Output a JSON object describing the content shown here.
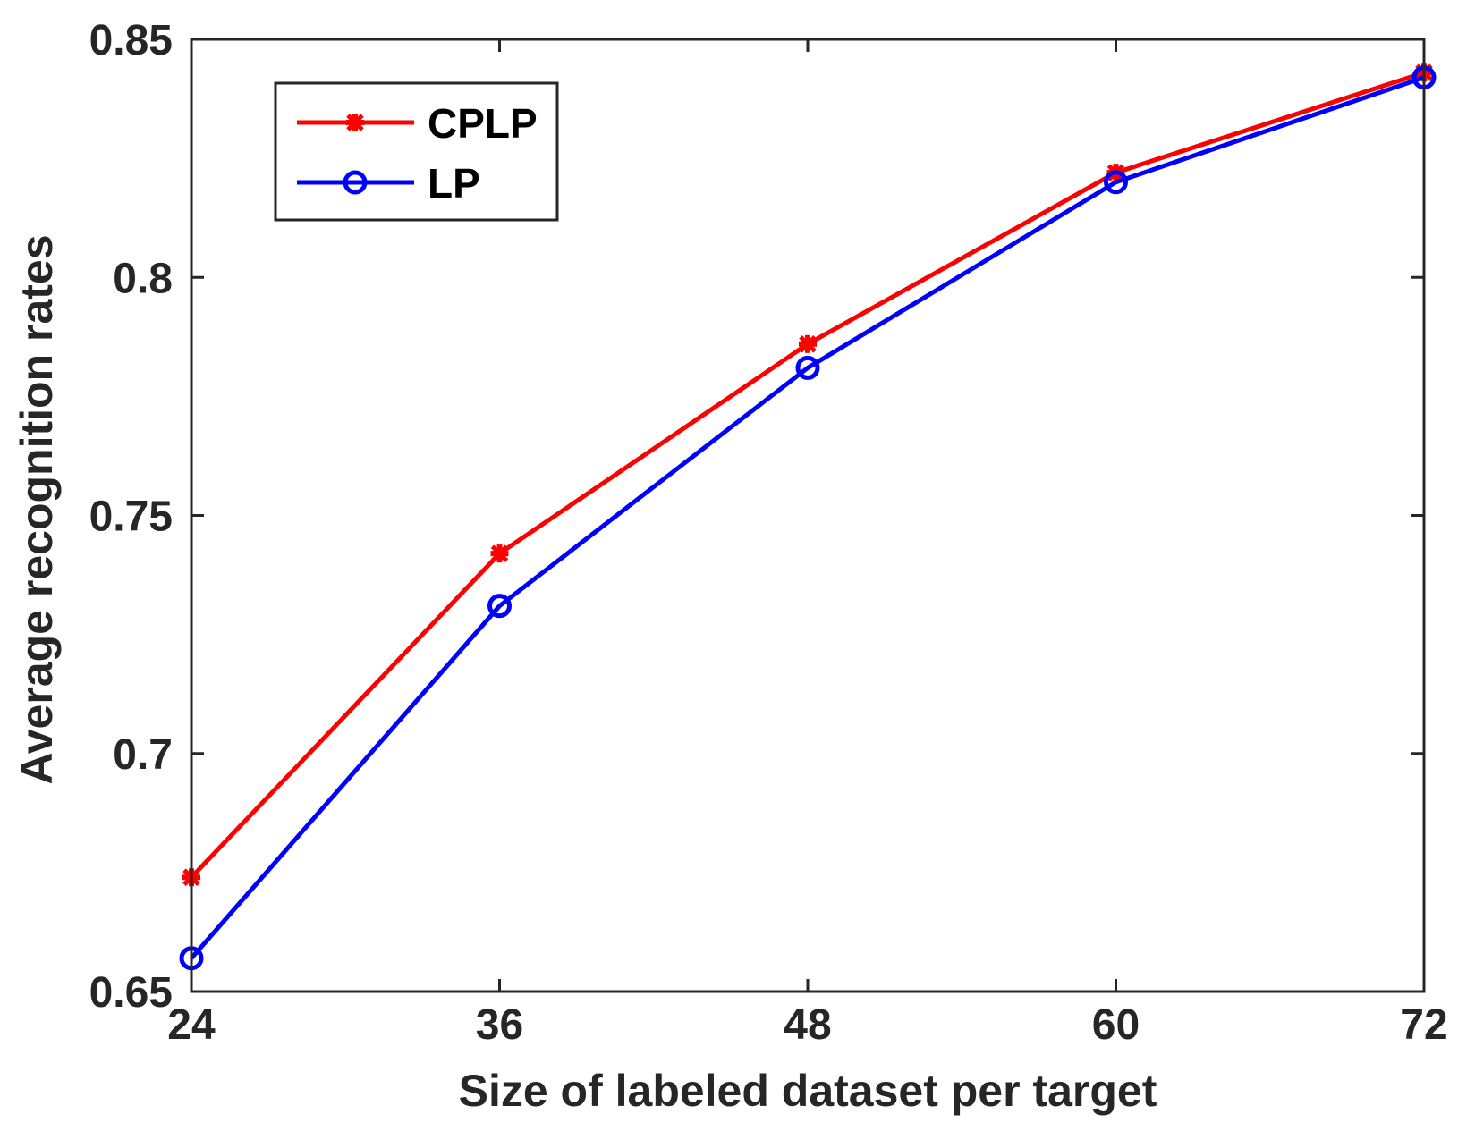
{
  "chart_data": {
    "type": "line",
    "title": "",
    "xlabel": "Size of labeled dataset per target",
    "ylabel": "Average recognition rates",
    "x": [
      24,
      36,
      48,
      60,
      72
    ],
    "xlim": [
      24,
      72
    ],
    "ylim": [
      0.65,
      0.85
    ],
    "xticks": [
      "24",
      "36",
      "48",
      "60",
      "72"
    ],
    "yticks": [
      "0.65",
      "0.7",
      "0.75",
      "0.8",
      "0.85"
    ],
    "grid": false,
    "legend_location": "top-left",
    "series": [
      {
        "name": "CPLP",
        "color": "#ff0000",
        "marker": "asterisk",
        "values": [
          0.674,
          0.742,
          0.786,
          0.822,
          0.843
        ]
      },
      {
        "name": "LP",
        "color": "#0000ff",
        "marker": "circle",
        "values": [
          0.657,
          0.731,
          0.781,
          0.82,
          0.842
        ]
      }
    ]
  }
}
